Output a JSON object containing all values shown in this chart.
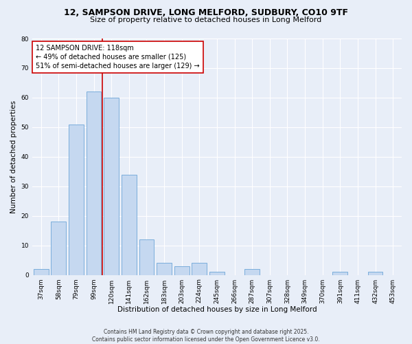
{
  "title1": "12, SAMPSON DRIVE, LONG MELFORD, SUDBURY, CO10 9TF",
  "title2": "Size of property relative to detached houses in Long Melford",
  "xlabel": "Distribution of detached houses by size in Long Melford",
  "ylabel": "Number of detached properties",
  "categories": [
    "37sqm",
    "58sqm",
    "79sqm",
    "99sqm",
    "120sqm",
    "141sqm",
    "162sqm",
    "183sqm",
    "203sqm",
    "224sqm",
    "245sqm",
    "266sqm",
    "287sqm",
    "307sqm",
    "328sqm",
    "349sqm",
    "370sqm",
    "391sqm",
    "411sqm",
    "432sqm",
    "453sqm"
  ],
  "values": [
    2,
    18,
    51,
    62,
    60,
    34,
    12,
    4,
    3,
    4,
    1,
    0,
    2,
    0,
    0,
    0,
    0,
    1,
    0,
    1,
    0
  ],
  "bar_color": "#c5d8f0",
  "bar_edge_color": "#7aaddb",
  "vline_color": "#cc0000",
  "annotation_text": "12 SAMPSON DRIVE: 118sqm\n← 49% of detached houses are smaller (125)\n51% of semi-detached houses are larger (129) →",
  "annotation_box_color": "#ffffff",
  "annotation_box_edge": "#cc0000",
  "ylim": [
    0,
    80
  ],
  "yticks": [
    0,
    10,
    20,
    30,
    40,
    50,
    60,
    70,
    80
  ],
  "fig_bg_color": "#e8eef8",
  "plot_bg_color": "#e8eef8",
  "grid_color": "#ffffff",
  "footer": "Contains HM Land Registry data © Crown copyright and database right 2025.\nContains public sector information licensed under the Open Government Licence v3.0.",
  "title_fontsize": 9,
  "subtitle_fontsize": 8,
  "axis_label_fontsize": 7.5,
  "tick_fontsize": 6.5,
  "annotation_fontsize": 7,
  "footer_fontsize": 5.5
}
